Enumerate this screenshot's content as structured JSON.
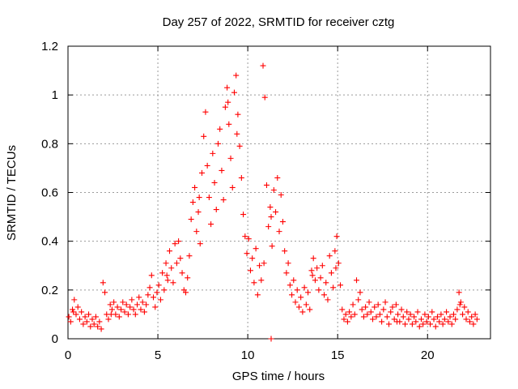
{
  "chart_data": {
    "type": "scatter",
    "title": "Day 257 of 2022, SRMTID for receiver cztg",
    "xlabel": "GPS time / hours",
    "ylabel": "SRMTID / TECUs",
    "xlim": [
      0,
      23.5
    ],
    "ylim": [
      0,
      1.2
    ],
    "x_ticks": [
      0,
      5,
      10,
      15,
      20
    ],
    "x_tick_labels": [
      "0",
      "5",
      "10",
      "15",
      "20"
    ],
    "y_ticks": [
      0,
      0.2,
      0.4,
      0.6,
      0.8,
      1.0,
      1.2
    ],
    "y_tick_labels": [
      "0",
      "0.2",
      "0.4",
      "0.6",
      "0.8",
      "1",
      "1.2"
    ],
    "grid": true,
    "marker": "plus",
    "color": "#ff0000",
    "series": [
      {
        "name": "SRMTID",
        "points": [
          [
            0.05,
            0.09
          ],
          [
            0.15,
            0.07
          ],
          [
            0.25,
            0.12
          ],
          [
            0.35,
            0.16
          ],
          [
            0.45,
            0.1
          ],
          [
            0.55,
            0.13
          ],
          [
            0.65,
            0.08
          ],
          [
            0.75,
            0.11
          ],
          [
            0.85,
            0.06
          ],
          [
            0.95,
            0.09
          ],
          [
            1.05,
            0.07
          ],
          [
            1.15,
            0.1
          ],
          [
            1.25,
            0.05
          ],
          [
            1.35,
            0.08
          ],
          [
            1.45,
            0.06
          ],
          [
            1.55,
            0.09
          ],
          [
            1.65,
            0.05
          ],
          [
            1.75,
            0.07
          ],
          [
            1.85,
            0.04
          ],
          [
            1.95,
            0.23
          ],
          [
            2.05,
            0.19
          ],
          [
            2.15,
            0.1
          ],
          [
            2.25,
            0.08
          ],
          [
            2.35,
            0.14
          ],
          [
            2.45,
            0.12
          ],
          [
            2.55,
            0.15
          ],
          [
            2.65,
            0.1
          ],
          [
            2.75,
            0.13
          ],
          [
            2.85,
            0.09
          ],
          [
            2.95,
            0.12
          ],
          [
            3.05,
            0.15
          ],
          [
            3.15,
            0.11
          ],
          [
            3.25,
            0.14
          ],
          [
            3.35,
            0.1
          ],
          [
            3.45,
            0.13
          ],
          [
            3.55,
            0.16
          ],
          [
            3.65,
            0.12
          ],
          [
            3.75,
            0.1
          ],
          [
            3.85,
            0.14
          ],
          [
            3.95,
            0.17
          ],
          [
            4.05,
            0.12
          ],
          [
            4.15,
            0.15
          ],
          [
            4.25,
            0.11
          ],
          [
            4.35,
            0.14
          ],
          [
            4.45,
            0.18
          ],
          [
            4.55,
            0.21
          ],
          [
            4.65,
            0.26
          ],
          [
            4.75,
            0.17
          ],
          [
            4.85,
            0.13
          ],
          [
            4.95,
            0.19
          ],
          [
            5.05,
            0.22
          ],
          [
            5.15,
            0.16
          ],
          [
            5.25,
            0.27
          ],
          [
            5.35,
            0.2
          ],
          [
            5.45,
            0.31
          ],
          [
            5.55,
            0.24
          ],
          [
            5.65,
            0.36
          ],
          [
            5.75,
            0.29
          ],
          [
            5.85,
            0.23
          ],
          [
            5.95,
            0.39
          ],
          [
            6.05,
            0.31
          ],
          [
            6.15,
            0.4
          ],
          [
            6.25,
            0.33
          ],
          [
            6.35,
            0.27
          ],
          [
            6.45,
            0.2
          ],
          [
            6.55,
            0.19
          ],
          [
            6.65,
            0.25
          ],
          [
            6.75,
            0.34
          ],
          [
            6.85,
            0.49
          ],
          [
            6.95,
            0.56
          ],
          [
            7.05,
            0.62
          ],
          [
            7.15,
            0.44
          ],
          [
            7.25,
            0.52
          ],
          [
            7.35,
            0.39
          ],
          [
            7.45,
            0.68
          ],
          [
            7.55,
            0.83
          ],
          [
            7.65,
            0.93
          ],
          [
            7.75,
            0.71
          ],
          [
            7.85,
            0.58
          ],
          [
            7.95,
            0.47
          ],
          [
            8.05,
            0.76
          ],
          [
            8.15,
            0.64
          ],
          [
            8.25,
            0.53
          ],
          [
            8.35,
            0.8
          ],
          [
            8.45,
            0.86
          ],
          [
            8.55,
            0.69
          ],
          [
            8.65,
            0.57
          ],
          [
            8.75,
            0.95
          ],
          [
            8.85,
            1.03
          ],
          [
            8.95,
            0.88
          ],
          [
            9.05,
            0.74
          ],
          [
            9.15,
            0.62
          ],
          [
            9.25,
            1.01
          ],
          [
            9.35,
            1.08
          ],
          [
            9.45,
            0.92
          ],
          [
            9.55,
            0.79
          ],
          [
            9.65,
            0.66
          ],
          [
            9.75,
            0.51
          ],
          [
            9.85,
            0.42
          ],
          [
            9.95,
            0.35
          ],
          [
            10.05,
            0.41
          ],
          [
            10.15,
            0.28
          ],
          [
            10.25,
            0.33
          ],
          [
            10.35,
            0.23
          ],
          [
            10.45,
            0.37
          ],
          [
            10.55,
            0.18
          ],
          [
            10.65,
            0.3
          ],
          [
            10.75,
            0.24
          ],
          [
            10.85,
            1.12
          ],
          [
            10.95,
            0.99
          ],
          [
            11.05,
            0.63
          ],
          [
            11.15,
            0.46
          ],
          [
            11.25,
            0.54
          ],
          [
            11.35,
            0.38
          ],
          [
            11.45,
            0.61
          ],
          [
            11.55,
            0.52
          ],
          [
            11.65,
            0.66
          ],
          [
            11.75,
            0.44
          ],
          [
            11.85,
            0.59
          ],
          [
            11.95,
            0.48
          ],
          [
            12.05,
            0.36
          ],
          [
            12.15,
            0.27
          ],
          [
            12.25,
            0.31
          ],
          [
            12.35,
            0.22
          ],
          [
            12.45,
            0.18
          ],
          [
            12.55,
            0.24
          ],
          [
            12.65,
            0.15
          ],
          [
            12.75,
            0.2
          ],
          [
            12.85,
            0.13
          ],
          [
            12.95,
            0.17
          ],
          [
            13.05,
            0.11
          ],
          [
            13.15,
            0.21
          ],
          [
            13.25,
            0.14
          ],
          [
            13.35,
            0.19
          ],
          [
            13.45,
            0.12
          ],
          [
            13.55,
            0.28
          ],
          [
            13.65,
            0.33
          ],
          [
            13.75,
            0.24
          ],
          [
            13.85,
            0.29
          ],
          [
            13.95,
            0.2
          ],
          [
            14.05,
            0.25
          ],
          [
            14.15,
            0.3
          ],
          [
            14.25,
            0.18
          ],
          [
            14.35,
            0.23
          ],
          [
            14.45,
            0.16
          ],
          [
            14.55,
            0.34
          ],
          [
            14.65,
            0.27
          ],
          [
            14.75,
            0.21
          ],
          [
            14.85,
            0.36
          ],
          [
            14.95,
            0.42
          ],
          [
            15.05,
            0.31
          ],
          [
            15.15,
            0.22
          ],
          [
            15.25,
            0.12
          ],
          [
            15.35,
            0.08
          ],
          [
            15.45,
            0.1
          ],
          [
            15.55,
            0.07
          ],
          [
            15.65,
            0.11
          ],
          [
            15.75,
            0.09
          ],
          [
            15.85,
            0.14
          ],
          [
            15.95,
            0.1
          ],
          [
            16.05,
            0.24
          ],
          [
            16.15,
            0.16
          ],
          [
            16.25,
            0.19
          ],
          [
            16.35,
            0.12
          ],
          [
            16.45,
            0.09
          ],
          [
            16.55,
            0.13
          ],
          [
            16.65,
            0.1
          ],
          [
            16.75,
            0.15
          ],
          [
            16.85,
            0.11
          ],
          [
            16.95,
            0.08
          ],
          [
            17.05,
            0.13
          ],
          [
            17.15,
            0.09
          ],
          [
            17.25,
            0.14
          ],
          [
            17.35,
            0.1
          ],
          [
            17.45,
            0.07
          ],
          [
            17.55,
            0.12
          ],
          [
            17.65,
            0.15
          ],
          [
            17.75,
            0.09
          ],
          [
            17.85,
            0.06
          ],
          [
            17.95,
            0.11
          ],
          [
            18.05,
            0.13
          ],
          [
            18.15,
            0.08
          ],
          [
            18.25,
            0.14
          ],
          [
            18.35,
            0.1
          ],
          [
            18.45,
            0.07
          ],
          [
            18.55,
            0.12
          ],
          [
            18.65,
            0.09
          ],
          [
            18.75,
            0.06
          ],
          [
            18.85,
            0.11
          ],
          [
            18.95,
            0.08
          ],
          [
            19.05,
            0.1
          ],
          [
            19.15,
            0.06
          ],
          [
            19.25,
            0.09
          ],
          [
            19.35,
            0.07
          ],
          [
            19.45,
            0.11
          ],
          [
            19.55,
            0.05
          ],
          [
            19.65,
            0.08
          ],
          [
            19.75,
            0.06
          ],
          [
            19.85,
            0.1
          ],
          [
            19.95,
            0.07
          ],
          [
            20.05,
            0.09
          ],
          [
            20.15,
            0.06
          ],
          [
            20.25,
            0.11
          ],
          [
            20.35,
            0.08
          ],
          [
            20.45,
            0.05
          ],
          [
            20.55,
            0.09
          ],
          [
            20.65,
            0.07
          ],
          [
            20.75,
            0.1
          ],
          [
            20.85,
            0.06
          ],
          [
            20.95,
            0.08
          ],
          [
            21.05,
            0.11
          ],
          [
            21.15,
            0.07
          ],
          [
            21.25,
            0.09
          ],
          [
            21.35,
            0.06
          ],
          [
            21.45,
            0.1
          ],
          [
            21.55,
            0.08
          ],
          [
            21.65,
            0.12
          ],
          [
            21.75,
            0.19
          ],
          [
            21.85,
            0.15
          ],
          [
            21.95,
            0.1
          ],
          [
            22.05,
            0.13
          ],
          [
            22.15,
            0.08
          ],
          [
            22.25,
            0.11
          ],
          [
            22.35,
            0.07
          ],
          [
            22.45,
            0.09
          ],
          [
            22.55,
            0.06
          ],
          [
            22.65,
            0.1
          ],
          [
            22.75,
            0.08
          ],
          [
            0.3,
            0.11
          ],
          [
            2.4,
            0.1
          ],
          [
            5.5,
            0.26
          ],
          [
            7.3,
            0.58
          ],
          [
            8.9,
            0.97
          ],
          [
            9.4,
            0.84
          ],
          [
            10.9,
            0.31
          ],
          [
            11.3,
            0.5
          ],
          [
            13.6,
            0.26
          ],
          [
            14.9,
            0.29
          ],
          [
            18.3,
            0.07
          ],
          [
            21.8,
            0.14
          ],
          [
            11.3,
            0.0
          ]
        ]
      }
    ]
  }
}
